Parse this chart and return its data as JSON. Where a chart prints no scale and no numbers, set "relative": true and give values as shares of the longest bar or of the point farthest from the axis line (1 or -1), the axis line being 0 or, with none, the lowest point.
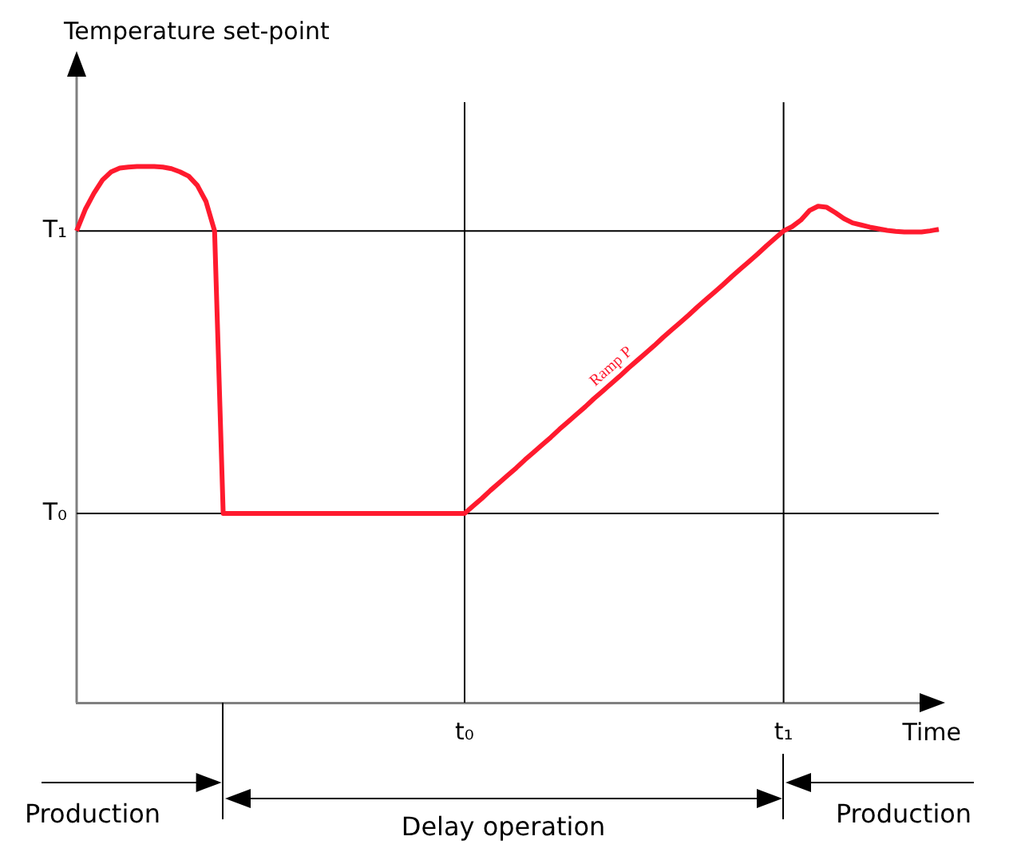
{
  "chart_data": {
    "type": "line",
    "relative": true,
    "xlabel": "Time",
    "categories": [
      null,
      null,
      null,
      null,
      null,
      null,
      null,
      null,
      null,
      null,
      null,
      null,
      null,
      null,
      null,
      null,
      null,
      null,
      null,
      null,
      null,
      null,
      null,
      null,
      null,
      null,
      null,
      null,
      null,
      null,
      null,
      null,
      null,
      null,
      null,
      null,
      null,
      null,
      null,
      null,
      null,
      null,
      null,
      null,
      null,
      "t₀",
      null,
      null,
      null,
      null,
      null,
      null,
      null,
      null,
      null,
      null,
      null,
      null,
      null,
      null,
      null,
      null,
      null,
      null,
      null,
      null,
      null,
      null,
      null,
      null,
      null,
      null,
      null,
      null,
      null,
      null,
      null,
      null,
      null,
      null,
      null,
      null,
      "t₁",
      null,
      null,
      null,
      null,
      null,
      null,
      null,
      null,
      null,
      null,
      null,
      null,
      null,
      null,
      null,
      null,
      null,
      null
    ],
    "values": [
      0.88,
      0.92,
      0.95,
      0.975,
      0.99,
      0.997,
      0.999,
      1,
      1,
      1,
      0.999,
      0.996,
      0.99,
      0.982,
      0.965,
      0.935,
      0.88,
      0.353,
      0.353,
      0.353,
      0.353,
      0.353,
      0.353,
      0.353,
      0.353,
      0.353,
      0.353,
      0.353,
      0.353,
      0.353,
      0.353,
      0.353,
      0.353,
      0.353,
      0.353,
      0.353,
      0.353,
      0.353,
      0.353,
      0.353,
      0.353,
      0.353,
      0.353,
      0.353,
      0.353,
      0.353,
      0.367,
      0.381,
      0.396,
      0.41,
      0.424,
      0.438,
      0.453,
      0.467,
      0.481,
      0.495,
      0.51,
      0.524,
      0.538,
      0.552,
      0.567,
      0.581,
      0.595,
      0.609,
      0.624,
      0.638,
      0.652,
      0.666,
      0.681,
      0.695,
      0.709,
      0.723,
      0.738,
      0.752,
      0.766,
      0.78,
      0.795,
      0.809,
      0.823,
      0.837,
      0.852,
      0.866,
      0.88,
      0.888,
      0.9,
      0.918,
      0.926,
      0.924,
      0.914,
      0.903,
      0.895,
      0.891,
      0.887,
      0.884,
      0.881,
      0.879,
      0.878,
      0.878,
      0.878,
      0.88,
      0.883
    ],
    "color": "#ff1a2e",
    "ref_lines": [
      {
        "axis": "y",
        "value": 0.88,
        "label": "T₁"
      },
      {
        "axis": "y",
        "value": 0.353,
        "label": "T₀"
      },
      {
        "axis": "x",
        "value": "t₀"
      },
      {
        "axis": "x",
        "value": "t₁"
      }
    ],
    "annotations": [
      "Production",
      "Delay operation",
      "Production",
      "Ramp P",
      "Temperature set-point"
    ],
    "legend": false,
    "marker": "none",
    "line_style": "solid"
  }
}
